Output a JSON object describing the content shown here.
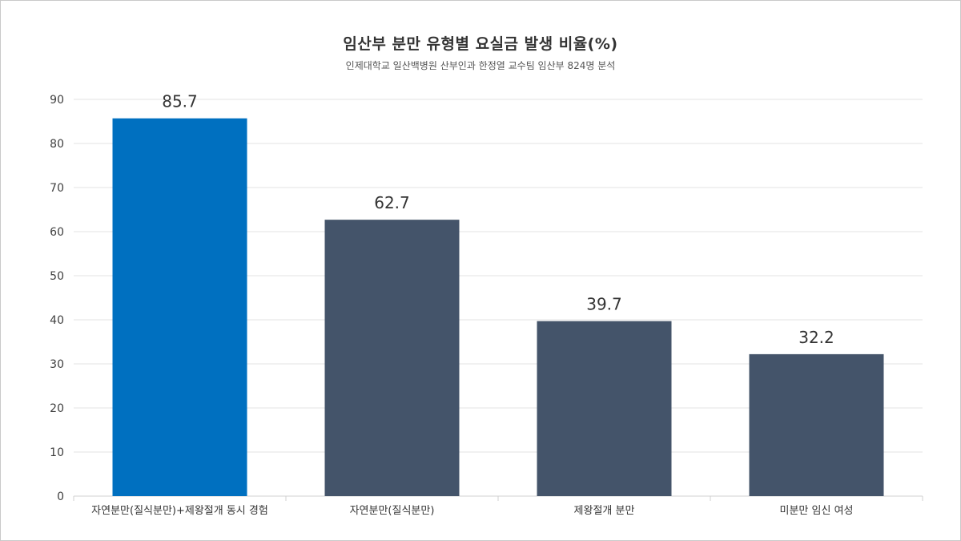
{
  "chart_data": {
    "type": "bar",
    "title": "임산부 분만 유형별 요실금 발생 비율(%)",
    "subtitle": "인제대학교 일산백병원 산부인과 한정열 교수팀 임산부 824명 분석",
    "categories": [
      "자연분만(질식분만)+제왕절개 동시 경험",
      "자연분만(질식분만)",
      "제왕절개 분만",
      "미분만 임신 여성"
    ],
    "values": [
      85.7,
      62.7,
      39.7,
      32.2
    ],
    "value_labels": [
      "85.7",
      "62.7",
      "39.7",
      "32.2"
    ],
    "bar_colors": [
      "#0070c0",
      "#44546a",
      "#44546a",
      "#44546a"
    ],
    "xlabel": "",
    "ylabel": "",
    "ylim": [
      0,
      90
    ],
    "yticks": [
      0,
      10,
      20,
      30,
      40,
      50,
      60,
      70,
      80,
      90
    ],
    "grid": true,
    "legend": "none"
  }
}
